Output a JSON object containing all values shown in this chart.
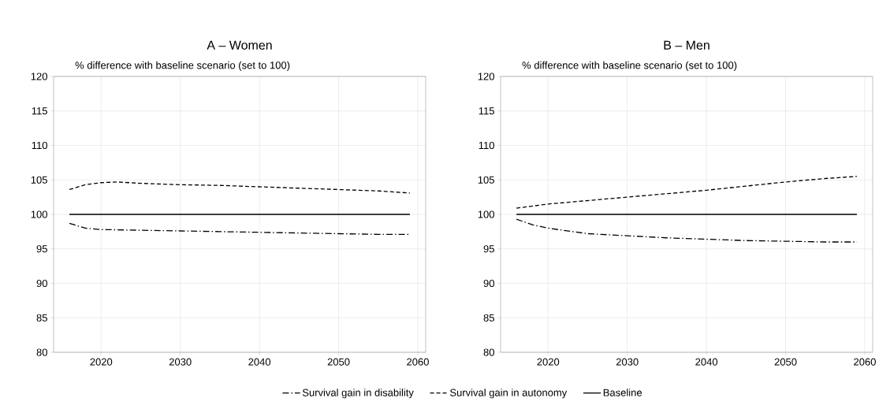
{
  "chart_data": [
    {
      "type": "line",
      "title": "A – Women",
      "ylabel": "% difference with baseline scenario (set to 100)",
      "xlim": [
        2014,
        2061
      ],
      "xticks": [
        2020,
        2030,
        2040,
        2050,
        2060
      ],
      "ylim": [
        80,
        120
      ],
      "yticks": [
        80,
        85,
        90,
        95,
        100,
        105,
        110,
        115,
        120
      ],
      "grid": true,
      "legend": "bottom",
      "series": [
        {
          "name": "Survival gain in disability",
          "color": "#000000",
          "line_style": "dashdot",
          "x": [
            2016,
            2018,
            2020,
            2025,
            2030,
            2035,
            2040,
            2045,
            2050,
            2055,
            2059
          ],
          "values": [
            98.7,
            98.0,
            97.8,
            97.7,
            97.6,
            97.5,
            97.4,
            97.3,
            97.2,
            97.1,
            97.1
          ]
        },
        {
          "name": "Survival gain in autonomy",
          "color": "#000000",
          "line_style": "dashed",
          "x": [
            2016,
            2018,
            2020,
            2022,
            2025,
            2030,
            2035,
            2040,
            2045,
            2050,
            2055,
            2059
          ],
          "values": [
            103.6,
            104.3,
            104.6,
            104.7,
            104.5,
            104.3,
            104.2,
            104.0,
            103.8,
            103.6,
            103.4,
            103.1
          ]
        },
        {
          "name": "Baseline",
          "color": "#000000",
          "line_style": "solid",
          "x": [
            2016,
            2059
          ],
          "values": [
            100,
            100
          ]
        }
      ]
    },
    {
      "type": "line",
      "title": "B – Men",
      "ylabel": "% difference with baseline scenario (set to 100)",
      "xlim": [
        2014,
        2061
      ],
      "xticks": [
        2020,
        2030,
        2040,
        2050,
        2060
      ],
      "ylim": [
        80,
        120
      ],
      "yticks": [
        80,
        85,
        90,
        95,
        100,
        105,
        110,
        115,
        120
      ],
      "grid": true,
      "series": [
        {
          "color": "#000000",
          "line_style": "dashdot",
          "x": [
            2016,
            2018,
            2020,
            2025,
            2030,
            2035,
            2040,
            2045,
            2050,
            2055,
            2059
          ],
          "values": [
            99.3,
            98.5,
            98.0,
            97.2,
            96.9,
            96.6,
            96.4,
            96.2,
            96.1,
            96.0,
            96.0
          ]
        },
        {
          "color": "#000000",
          "line_style": "dashed",
          "x": [
            2016,
            2020,
            2025,
            2030,
            2035,
            2040,
            2045,
            2050,
            2055,
            2059
          ],
          "values": [
            100.9,
            101.5,
            102.0,
            102.5,
            103.0,
            103.5,
            104.1,
            104.7,
            105.2,
            105.5
          ]
        },
        {
          "color": "#000000",
          "line_style": "solid",
          "x": [
            2016,
            2059
          ],
          "values": [
            100,
            100
          ]
        }
      ]
    }
  ]
}
